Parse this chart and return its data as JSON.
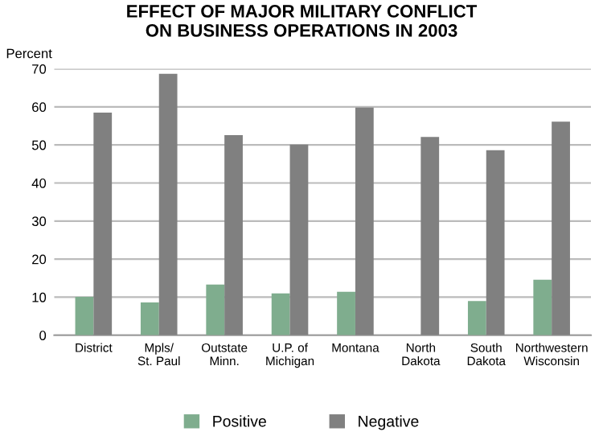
{
  "chart_data": {
    "type": "bar",
    "title": "EFFECT OF MAJOR MILITARY CONFLICT\nON BUSINESS OPERATIONS IN 2003",
    "ylabel": "Percent",
    "categories": [
      "District",
      "Mpls/\nSt. Paul",
      "Outstate\nMinn.",
      "U.P. of\nMichigan",
      "Montana",
      "North\nDakota",
      "South\nDakota",
      "Northwestern\nWisconsin"
    ],
    "series": [
      {
        "name": "Positive",
        "color": "#7fad8e",
        "values": [
          10.1,
          8.6,
          13.3,
          11.0,
          11.4,
          0,
          9.0,
          14.6
        ]
      },
      {
        "name": "Negative",
        "color": "#808080",
        "values": [
          58.5,
          68.7,
          52.6,
          50.1,
          59.8,
          52.1,
          48.6,
          56.1
        ]
      }
    ],
    "ylim": [
      0,
      70
    ],
    "yticks": [
      0,
      10,
      20,
      30,
      40,
      50,
      60,
      70
    ],
    "grid": "y",
    "legend": "bottom"
  }
}
